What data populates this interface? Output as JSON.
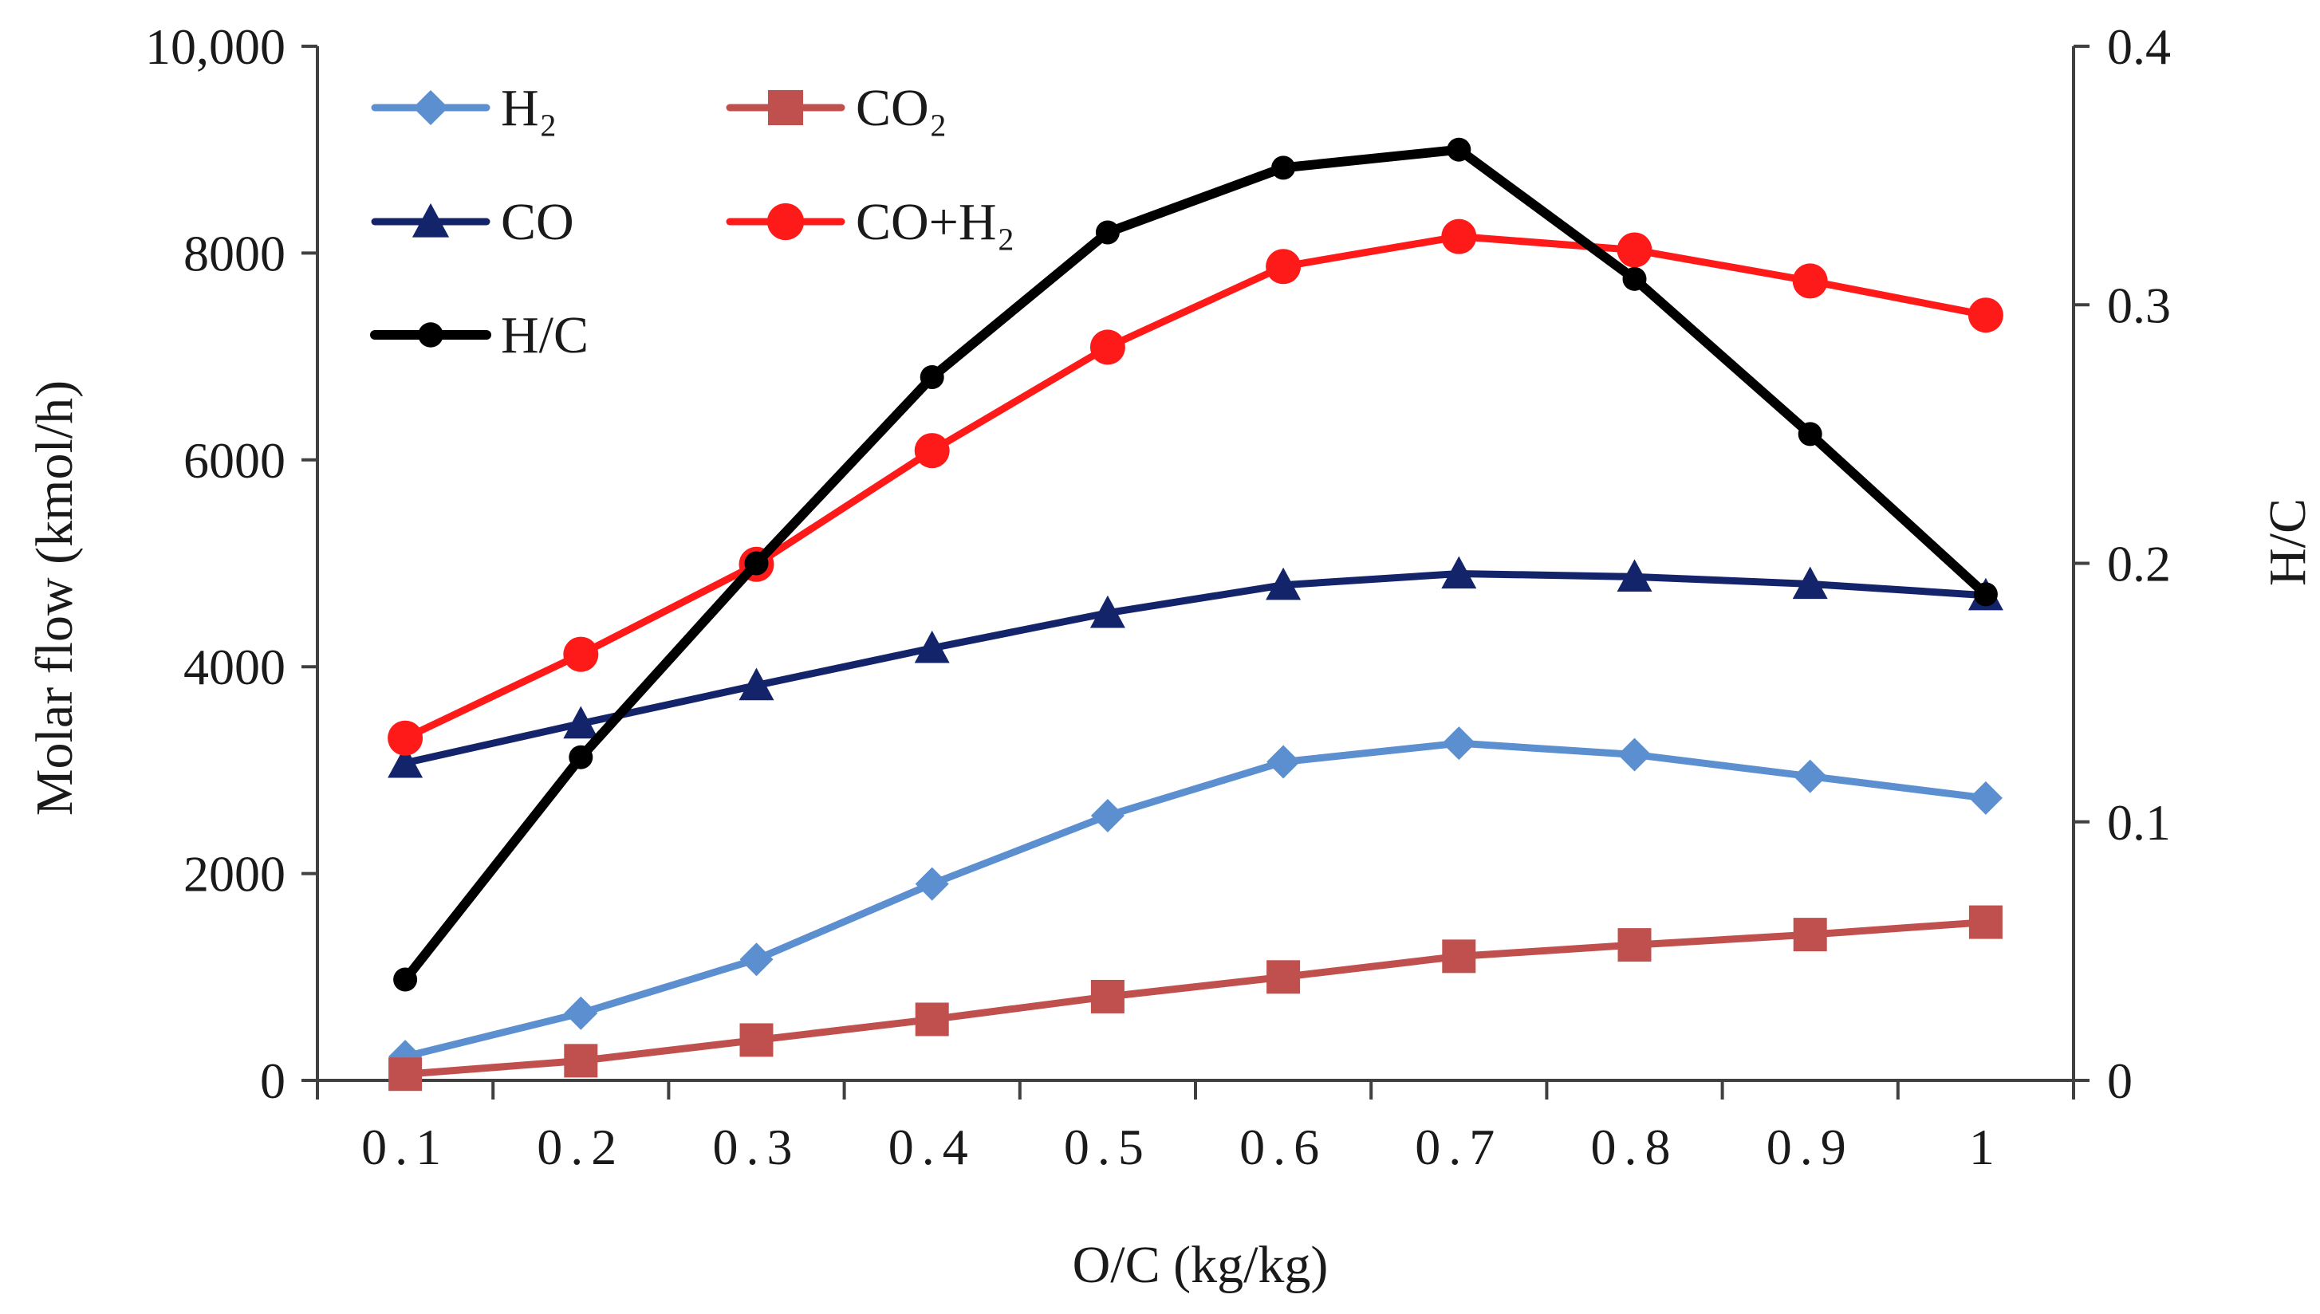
{
  "chart_data": {
    "type": "line",
    "title": "",
    "xlabel": "O/C (kg/kg)",
    "ylabel_left": "Molar flow (kmol/h)",
    "ylabel_right": "H/C",
    "categories": [
      "0.1",
      "0.2",
      "0.3",
      "0.4",
      "0.5",
      "0.6",
      "0.7",
      "0.8",
      "0.9",
      "1"
    ],
    "ylim_left": [
      0,
      10000
    ],
    "ylim_right": [
      0,
      0.4
    ],
    "y_ticks_left": [
      "0",
      "2000",
      "4000",
      "6000",
      "8000",
      "10,000"
    ],
    "y_ticks_right": [
      "0",
      "0.1",
      "0.2",
      "0.3",
      "0.4"
    ],
    "grid": false,
    "legend_position": "top-left inside",
    "series": [
      {
        "name": "H₂",
        "axis": "left",
        "marker": "diamond",
        "color": "#5b8fd0",
        "values": [
          230,
          650,
          1170,
          1900,
          2560,
          3080,
          3260,
          3150,
          2940,
          2730
        ]
      },
      {
        "name": "CO₂",
        "axis": "left",
        "marker": "square",
        "color": "#c0504d",
        "values": [
          60,
          190,
          390,
          590,
          810,
          1000,
          1200,
          1310,
          1410,
          1530
        ]
      },
      {
        "name": "CO",
        "axis": "left",
        "marker": "triangle",
        "color": "#14246b",
        "values": [
          3070,
          3450,
          3820,
          4180,
          4520,
          4790,
          4900,
          4870,
          4800,
          4690
        ]
      },
      {
        "name": "CO+H₂",
        "axis": "left",
        "marker": "circle",
        "color": "#ff1a1a",
        "values": [
          3310,
          4120,
          4990,
          6090,
          7090,
          7870,
          8160,
          8030,
          7730,
          7400
        ]
      },
      {
        "name": "H/C",
        "axis": "right",
        "marker": "dot",
        "color": "#000000",
        "values": [
          0.039,
          0.125,
          0.2,
          0.272,
          0.328,
          0.353,
          0.36,
          0.31,
          0.25,
          0.188
        ]
      }
    ]
  }
}
